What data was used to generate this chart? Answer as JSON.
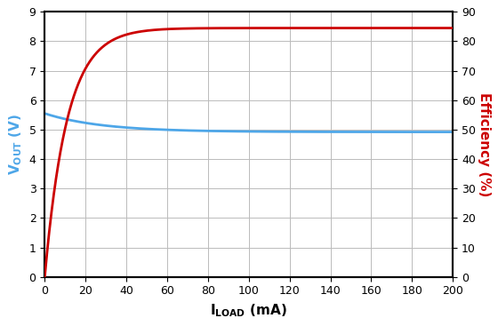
{
  "xlim": [
    0,
    200
  ],
  "ylim_left": [
    0,
    9
  ],
  "ylim_right": [
    0,
    90
  ],
  "xticks": [
    0,
    20,
    40,
    60,
    80,
    100,
    120,
    140,
    160,
    180,
    200
  ],
  "yticks_left": [
    0,
    1,
    2,
    3,
    4,
    5,
    6,
    7,
    8,
    9
  ],
  "yticks_right": [
    0,
    10,
    20,
    30,
    40,
    50,
    60,
    70,
    80,
    90
  ],
  "vout_color": "#4da6e8",
  "eff_color": "#cc0000",
  "line_width": 2.0,
  "background_color": "#ffffff",
  "grid_color": "#bbbbbb",
  "tick_label_fontsize": 9,
  "axis_label_fontsize": 11,
  "vout_start": 5.55,
  "vout_end": 4.92,
  "vout_tau": 28,
  "eff_max": 84.5,
  "eff_tau": 11.0
}
